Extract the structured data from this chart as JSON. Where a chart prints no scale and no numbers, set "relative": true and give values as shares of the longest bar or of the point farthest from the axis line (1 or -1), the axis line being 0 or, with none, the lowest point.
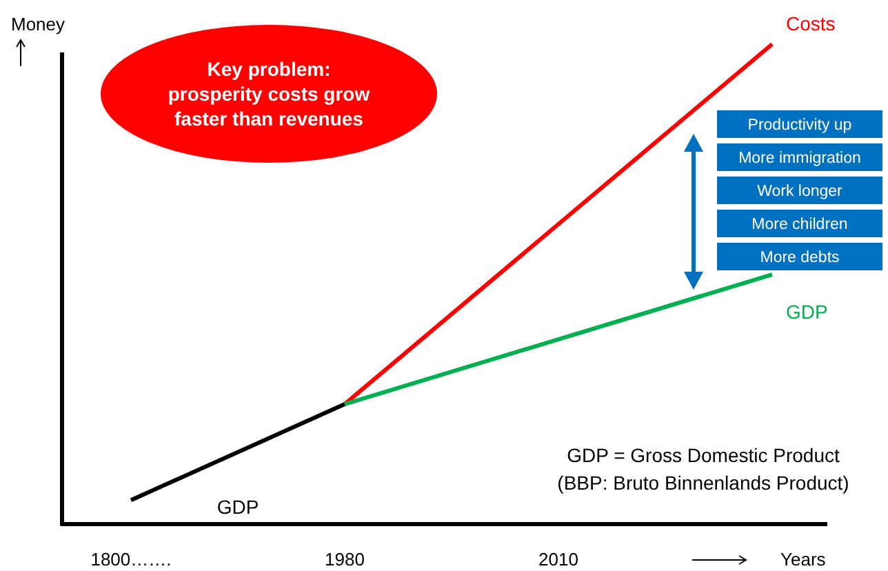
{
  "chart_data": {
    "type": "line",
    "relative": true,
    "xlabel": "Years",
    "ylabel": "Money",
    "categories": [
      "1800…….",
      "1980",
      "2010",
      null
    ],
    "series": [
      {
        "name": "GDP",
        "color": "#000000",
        "values": [
          0.05,
          0.25,
          null,
          null
        ]
      },
      {
        "name": "Costs",
        "color": "#ff0000",
        "values": [
          null,
          0.25,
          null,
          1
        ]
      },
      {
        "name": "GDP",
        "color": "#00b050",
        "values": [
          null,
          0.25,
          null,
          0.52
        ]
      }
    ],
    "annotations": [
      "Key problem: prosperity costs grow faster than revenues",
      "Productivity up",
      "More immigration",
      "Work longer",
      "More children",
      "More debts",
      "GDP = Gross Domestic Product",
      "(BBP: Bruto Binnenlands Product)"
    ],
    "legend": false,
    "grid": false,
    "marker": "none",
    "line_style": "solid"
  }
}
